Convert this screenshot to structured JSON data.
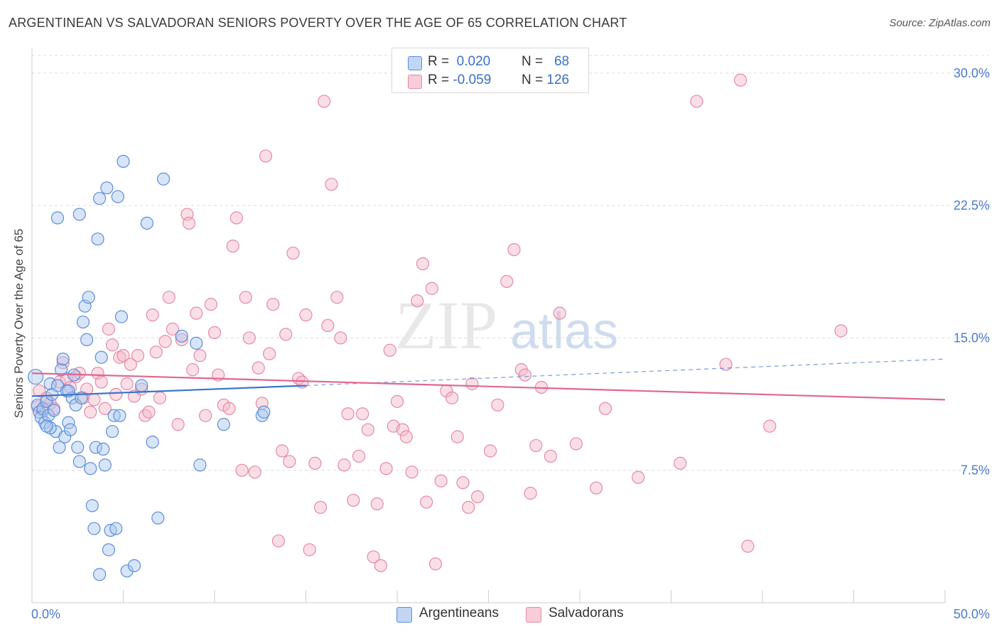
{
  "title": "ARGENTINEAN VS SALVADORAN SENIORS POVERTY OVER THE AGE OF 65 CORRELATION CHART",
  "source": "Source: ZipAtlas.com",
  "watermark": {
    "zip": "ZIP",
    "atlas": "atlas"
  },
  "legend": {
    "rows": [
      {
        "r_label": "R =",
        "r_value": "0.020",
        "n_label": "N =",
        "n_value": "68"
      },
      {
        "r_label": "R =",
        "r_value": "-0.059",
        "n_label": "N =",
        "n_value": "126"
      }
    ]
  },
  "bottom_legend": [
    "Argentineans",
    "Salvadorans"
  ],
  "colors": {
    "blue_fill": "#a8c6ef",
    "blue_stroke": "#5b8ed8",
    "blue_line": "#3a76cc",
    "pink_fill": "#f4b6c8",
    "pink_stroke": "#e48aa6",
    "pink_line": "#e06793",
    "tick_text": "#4a7bd0",
    "grid": "#dcdcdc"
  },
  "chart_data": {
    "type": "scatter",
    "title": "ARGENTINEAN VS SALVADORAN SENIORS POVERTY OVER THE AGE OF 65 CORRELATION CHART",
    "xlabel": "",
    "ylabel": "Seniors Poverty Over the Age of 65",
    "xlim": [
      0,
      50
    ],
    "ylim": [
      0,
      31
    ],
    "x_tick_labels": [
      "0.0%",
      "50.0%"
    ],
    "y_ticks": [
      7.5,
      15.0,
      22.5,
      30.0
    ],
    "y_tick_labels": [
      "7.5%",
      "15.0%",
      "22.5%",
      "30.0%"
    ],
    "grid": true,
    "legend_position": "top-center",
    "series": [
      {
        "name": "Argentineans",
        "r": 0.02,
        "n": 68,
        "trend": {
          "x0": 0,
          "y0": 11.7,
          "x1": 15,
          "y1": 12.3,
          "dash_to_x": 50,
          "dash_to_y": 13.8
        },
        "points": [
          [
            0.2,
            12.8
          ],
          [
            0.3,
            11.2
          ],
          [
            0.4,
            10.8
          ],
          [
            0.5,
            10.5
          ],
          [
            0.6,
            11.0
          ],
          [
            0.7,
            10.2
          ],
          [
            0.8,
            11.4
          ],
          [
            0.9,
            10.6
          ],
          [
            1.0,
            12.4
          ],
          [
            1.1,
            11.8
          ],
          [
            1.2,
            10.9
          ],
          [
            1.3,
            9.7
          ],
          [
            1.4,
            12.3
          ],
          [
            1.6,
            13.2
          ],
          [
            1.7,
            13.8
          ],
          [
            1.8,
            9.4
          ],
          [
            1.9,
            12.0
          ],
          [
            2.0,
            10.2
          ],
          [
            2.1,
            9.8
          ],
          [
            2.2,
            11.6
          ],
          [
            2.3,
            12.9
          ],
          [
            2.4,
            11.2
          ],
          [
            2.5,
            8.8
          ],
          [
            2.6,
            8.0
          ],
          [
            2.7,
            11.6
          ],
          [
            2.8,
            15.9
          ],
          [
            2.9,
            16.8
          ],
          [
            3.0,
            14.9
          ],
          [
            3.1,
            17.3
          ],
          [
            3.2,
            7.6
          ],
          [
            3.3,
            5.5
          ],
          [
            3.4,
            4.2
          ],
          [
            3.5,
            8.8
          ],
          [
            3.6,
            20.6
          ],
          [
            3.7,
            22.9
          ],
          [
            3.8,
            13.9
          ],
          [
            3.9,
            8.7
          ],
          [
            4.0,
            7.8
          ],
          [
            4.1,
            23.5
          ],
          [
            4.2,
            3.0
          ],
          [
            4.3,
            4.1
          ],
          [
            4.4,
            9.7
          ],
          [
            4.5,
            10.6
          ],
          [
            4.6,
            4.2
          ],
          [
            4.7,
            23.0
          ],
          [
            4.8,
            10.6
          ],
          [
            4.9,
            16.2
          ],
          [
            5.0,
            25.0
          ],
          [
            5.2,
            1.8
          ],
          [
            5.6,
            2.1
          ],
          [
            6.0,
            12.3
          ],
          [
            6.3,
            21.5
          ],
          [
            6.6,
            9.1
          ],
          [
            6.9,
            4.8
          ],
          [
            7.2,
            24.0
          ],
          [
            8.2,
            15.1
          ],
          [
            9.0,
            14.7
          ],
          [
            1.4,
            21.8
          ],
          [
            2.6,
            22.0
          ],
          [
            3.7,
            1.6
          ],
          [
            9.2,
            7.8
          ],
          [
            10.5,
            10.1
          ],
          [
            12.6,
            10.6
          ],
          [
            12.7,
            10.8
          ],
          [
            1.0,
            9.9
          ],
          [
            0.8,
            10.0
          ],
          [
            1.5,
            8.8
          ],
          [
            2.0,
            12.0
          ]
        ]
      },
      {
        "name": "Salvadorans",
        "r": -0.059,
        "n": 126,
        "trend": {
          "x0": 0,
          "y0": 13.0,
          "x1": 50,
          "y1": 11.5
        },
        "points": [
          [
            0.3,
            11.1
          ],
          [
            0.4,
            12.0
          ],
          [
            0.6,
            10.9
          ],
          [
            0.8,
            11.6
          ],
          [
            1.0,
            11.3
          ],
          [
            1.2,
            11.0
          ],
          [
            1.5,
            12.5
          ],
          [
            1.7,
            13.6
          ],
          [
            1.9,
            12.7
          ],
          [
            2.1,
            12.2
          ],
          [
            2.4,
            12.8
          ],
          [
            2.6,
            13.0
          ],
          [
            2.8,
            11.6
          ],
          [
            3.0,
            12.1
          ],
          [
            3.2,
            10.8
          ],
          [
            3.4,
            11.5
          ],
          [
            3.6,
            13.0
          ],
          [
            3.8,
            12.5
          ],
          [
            4.0,
            11.0
          ],
          [
            4.2,
            15.5
          ],
          [
            4.4,
            14.6
          ],
          [
            4.6,
            11.8
          ],
          [
            4.8,
            13.9
          ],
          [
            5.0,
            14.0
          ],
          [
            5.2,
            12.4
          ],
          [
            5.4,
            13.5
          ],
          [
            5.6,
            11.7
          ],
          [
            5.8,
            14.0
          ],
          [
            6.0,
            12.1
          ],
          [
            6.2,
            10.6
          ],
          [
            6.4,
            10.8
          ],
          [
            6.6,
            16.3
          ],
          [
            6.8,
            14.2
          ],
          [
            7.0,
            11.6
          ],
          [
            7.3,
            14.8
          ],
          [
            7.5,
            17.3
          ],
          [
            7.7,
            15.5
          ],
          [
            8.0,
            10.1
          ],
          [
            8.2,
            14.9
          ],
          [
            8.5,
            22.0
          ],
          [
            8.6,
            21.5
          ],
          [
            8.8,
            13.2
          ],
          [
            9.0,
            16.4
          ],
          [
            9.2,
            14.0
          ],
          [
            9.5,
            10.6
          ],
          [
            9.8,
            16.9
          ],
          [
            10.0,
            15.3
          ],
          [
            10.2,
            12.9
          ],
          [
            10.5,
            11.2
          ],
          [
            10.8,
            11.0
          ],
          [
            11.0,
            20.2
          ],
          [
            11.2,
            21.8
          ],
          [
            11.5,
            7.5
          ],
          [
            11.7,
            17.3
          ],
          [
            11.9,
            15.0
          ],
          [
            12.2,
            7.4
          ],
          [
            12.4,
            13.3
          ],
          [
            12.6,
            11.3
          ],
          [
            12.8,
            25.3
          ],
          [
            13.0,
            14.1
          ],
          [
            13.2,
            16.9
          ],
          [
            13.5,
            3.5
          ],
          [
            13.7,
            8.6
          ],
          [
            13.9,
            15.2
          ],
          [
            14.1,
            8.0
          ],
          [
            14.3,
            19.8
          ],
          [
            14.6,
            12.7
          ],
          [
            14.8,
            12.5
          ],
          [
            15.0,
            16.3
          ],
          [
            15.2,
            3.0
          ],
          [
            15.5,
            7.9
          ],
          [
            15.8,
            5.4
          ],
          [
            16.0,
            28.4
          ],
          [
            16.2,
            15.7
          ],
          [
            16.4,
            23.7
          ],
          [
            16.7,
            17.3
          ],
          [
            16.9,
            15.0
          ],
          [
            17.1,
            7.8
          ],
          [
            17.3,
            10.7
          ],
          [
            17.6,
            5.8
          ],
          [
            17.9,
            8.3
          ],
          [
            18.1,
            10.7
          ],
          [
            18.4,
            9.8
          ],
          [
            18.7,
            2.6
          ],
          [
            18.9,
            5.6
          ],
          [
            19.1,
            2.1
          ],
          [
            19.4,
            7.6
          ],
          [
            19.6,
            14.3
          ],
          [
            19.8,
            10.0
          ],
          [
            20.0,
            11.4
          ],
          [
            20.3,
            9.8
          ],
          [
            20.5,
            9.4
          ],
          [
            20.8,
            7.4
          ],
          [
            21.1,
            17.1
          ],
          [
            21.4,
            19.2
          ],
          [
            21.6,
            5.7
          ],
          [
            21.9,
            17.8
          ],
          [
            22.1,
            2.2
          ],
          [
            22.4,
            6.9
          ],
          [
            22.7,
            12.0
          ],
          [
            23.0,
            11.6
          ],
          [
            23.3,
            9.4
          ],
          [
            23.6,
            6.8
          ],
          [
            23.9,
            5.4
          ],
          [
            24.1,
            12.4
          ],
          [
            24.4,
            6.0
          ],
          [
            25.1,
            8.6
          ],
          [
            25.5,
            11.2
          ],
          [
            26.0,
            18.2
          ],
          [
            26.4,
            20.0
          ],
          [
            26.8,
            13.2
          ],
          [
            27.0,
            12.9
          ],
          [
            27.3,
            6.2
          ],
          [
            27.6,
            8.9
          ],
          [
            27.9,
            12.2
          ],
          [
            28.4,
            8.3
          ],
          [
            28.9,
            16.4
          ],
          [
            29.8,
            9.0
          ],
          [
            30.9,
            6.5
          ],
          [
            31.4,
            11.0
          ],
          [
            33.2,
            7.1
          ],
          [
            35.5,
            7.9
          ],
          [
            36.4,
            28.4
          ],
          [
            38.0,
            13.5
          ],
          [
            38.8,
            29.6
          ],
          [
            39.2,
            3.2
          ],
          [
            40.4,
            10.0
          ],
          [
            44.3,
            15.4
          ]
        ]
      }
    ]
  }
}
